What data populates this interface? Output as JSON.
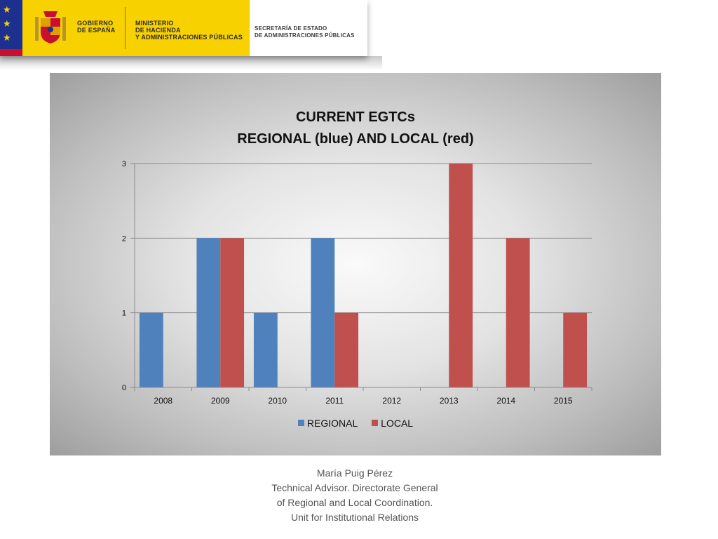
{
  "header": {
    "gov_lines": [
      "GOBIERNO",
      "DE ESPAÑA"
    ],
    "ministry_lines": [
      "MINISTERIO",
      "DE HACIENDA",
      "Y ADMINISTRACIONES PÚBLICAS"
    ],
    "secretariat_lines": [
      "SECRETARÍA DE ESTADO",
      "DE ADMINISTRACIONES PÚBLICAS"
    ]
  },
  "colors": {
    "regional": "#4f81bd",
    "local": "#c0504d",
    "eu_blue": "#1d2f8f",
    "gov_yellow": "#f7d100"
  },
  "chart_data": {
    "type": "bar",
    "title_lines": [
      "CURRENT  EGTCs",
      "REGIONAL (blue) AND LOCAL (red)"
    ],
    "categories": [
      "2008",
      "2009",
      "2010",
      "2011",
      "2012",
      "2013",
      "2014",
      "2015"
    ],
    "series": [
      {
        "name": "REGIONAL",
        "values": [
          1,
          2,
          1,
          2,
          0,
          0,
          0,
          0
        ]
      },
      {
        "name": "LOCAL",
        "values": [
          0,
          2,
          0,
          1,
          0,
          3,
          2,
          1
        ]
      }
    ],
    "ylim": [
      0,
      3
    ],
    "yticks": [
      "0",
      "1",
      "2",
      "3"
    ],
    "grid": true,
    "legend": "bottom"
  },
  "footer": {
    "lines": [
      "María Puig Pérez",
      "Technical Advisor. Directorate General",
      "of Regional and Local Coordination.",
      "Unit for Institutional Relations"
    ]
  }
}
